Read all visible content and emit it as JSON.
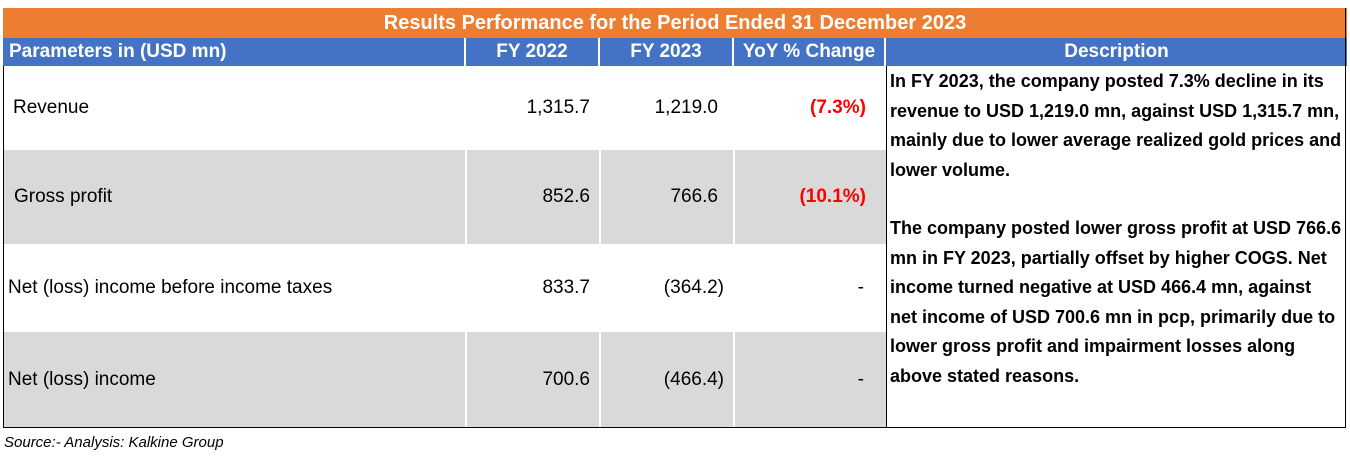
{
  "title": "Results Performance for the Period Ended 31 December 2023",
  "headers": {
    "parameters": "Parameters in (USD mn)",
    "fy2022": "FY 2022",
    "fy2023": "FY 2023",
    "yoy": "YoY % Change",
    "description": "Description"
  },
  "rows": [
    {
      "label": "Revenue",
      "fy2022": "1,315.7",
      "fy2023": "1,219.0",
      "yoy": "(7.3%)"
    },
    {
      "label": "Gross profit",
      "fy2022": "852.6",
      "fy2023": "766.6",
      "yoy": "(10.1%)"
    },
    {
      "label": "Net (loss) income before income taxes",
      "fy2022": "833.7",
      "fy2023": "(364.2)",
      "yoy": "-"
    },
    {
      "label": "Net (loss) income",
      "fy2022": "700.6",
      "fy2023": "(466.4)",
      "yoy": "-"
    }
  ],
  "description": {
    "paragraph1": "In FY 2023, the company posted 7.3% decline in its revenue to USD 1,219.0 mn, against USD 1,315.7 mn, mainly due to lower average realized gold prices and lower volume.",
    "paragraph2": "The company posted lower gross profit at USD 766.6 mn in FY 2023, partially offset by higher COGS. Net income turned negative at USD 466.4 mn, against net income of USD 700.6 mn in pcp, primarily due to lower gross profit and impairment losses along above stated reasons."
  },
  "source": "Source:- Analysis: Kalkine Group",
  "colors": {
    "title_bg": "#ED7D31",
    "header_bg": "#4472C4",
    "row_alt_bg": "#D9D9D9",
    "negative": "#FF0000"
  }
}
